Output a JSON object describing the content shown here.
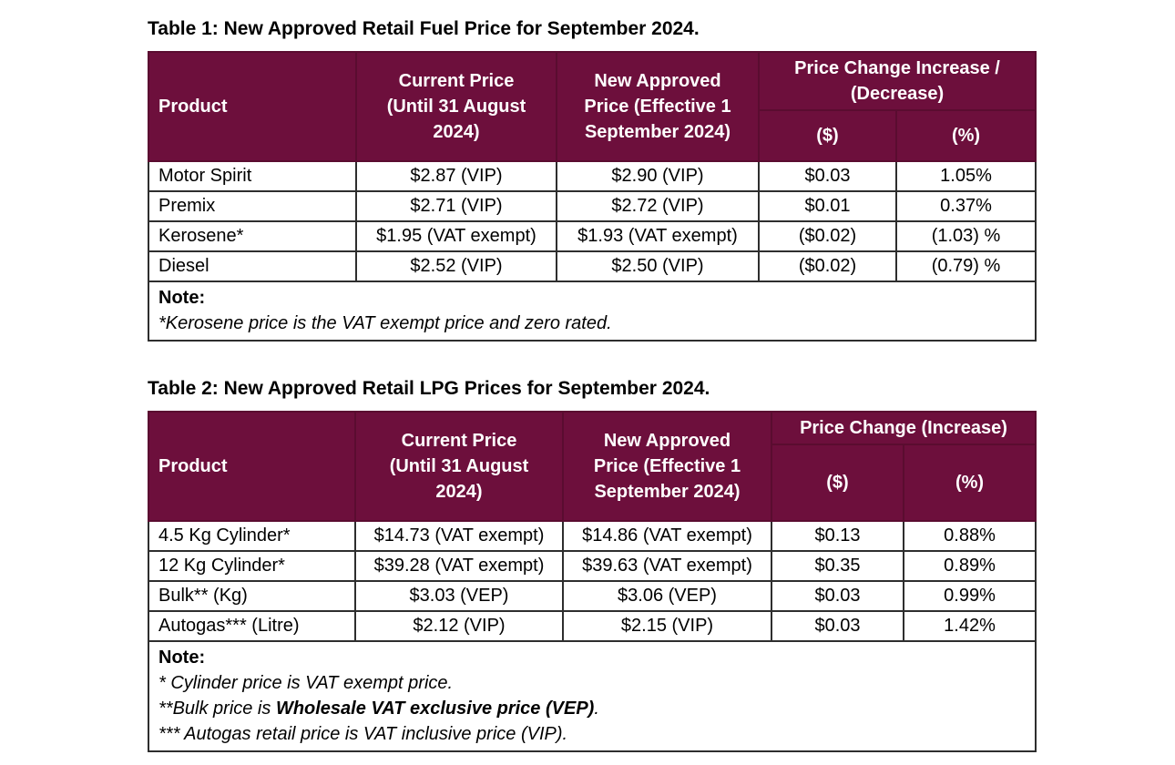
{
  "table1": {
    "caption": "Table 1: New Approved Retail Fuel Price for September 2024.",
    "headers": {
      "product": "Product",
      "current": "Current Price (Until 31 August 2024)",
      "new": "New Approved Price (Effective 1 September 2024)",
      "change": "Price Change Increase / (Decrease)",
      "dollar": "($)",
      "percent": "(%)"
    },
    "rows": [
      {
        "product": "Motor Spirit",
        "current": "$2.87 (VIP)",
        "new": "$2.90 (VIP)",
        "dollar": "$0.03",
        "percent": "1.05%"
      },
      {
        "product": "Premix",
        "current": "$2.71 (VIP)",
        "new": "$2.72 (VIP)",
        "dollar": "$0.01",
        "percent": "0.37%"
      },
      {
        "product": "Kerosene*",
        "current": "$1.95 (VAT exempt)",
        "new": "$1.93 (VAT exempt)",
        "dollar": "($0.02)",
        "percent": "(1.03) %"
      },
      {
        "product": "Diesel",
        "current": "$2.52 (VIP)",
        "new": "$2.50 (VIP)",
        "dollar": "($0.02)",
        "percent": "(0.79) %"
      }
    ],
    "note_title": "Note:",
    "note_lines": [
      "*Kerosene price is the VAT exempt price and zero rated."
    ]
  },
  "table2": {
    "caption": "Table 2: New Approved Retail LPG Prices for September 2024.",
    "headers": {
      "product": "Product",
      "current": "Current Price (Until 31 August 2024)",
      "new": "New Approved Price (Effective 1 September 2024)",
      "change": "Price Change (Increase)",
      "dollar": "($)",
      "percent": "(%)"
    },
    "rows": [
      {
        "product": "4.5 Kg Cylinder*",
        "current": "$14.73 (VAT exempt)",
        "new": "$14.86 (VAT exempt)",
        "dollar": "$0.13",
        "percent": "0.88%"
      },
      {
        "product": "12 Kg Cylinder*",
        "current": "$39.28 (VAT exempt)",
        "new": "$39.63 (VAT exempt)",
        "dollar": "$0.35",
        "percent": "0.89%"
      },
      {
        "product": "Bulk** (Kg)",
        "current": "$3.03 (VEP)",
        "new": "$3.06 (VEP)",
        "dollar": "$0.03",
        "percent": "0.99%"
      },
      {
        "product": "Autogas*** (Litre)",
        "current": "$2.12 (VIP)",
        "new": "$2.15 (VIP)",
        "dollar": "$0.03",
        "percent": "1.42%"
      }
    ],
    "note_title": "Note:",
    "note_lines": [
      "* Cylinder price is VAT exempt price.",
      "**Bulk price is ",
      "Wholesale VAT exclusive price (VEP)",
      ".",
      "*** Autogas retail price is VAT inclusive price (VIP)."
    ]
  }
}
